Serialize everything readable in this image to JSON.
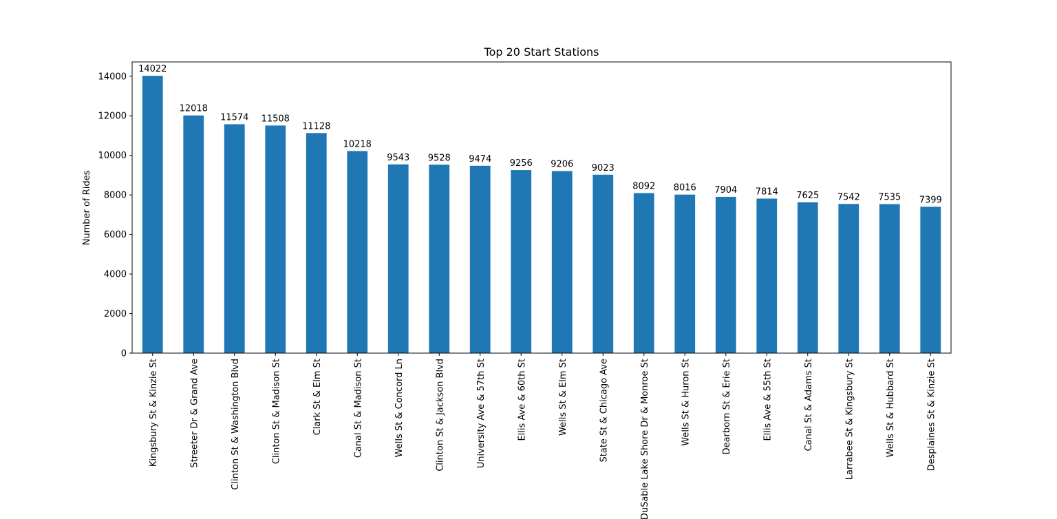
{
  "chart_data": {
    "type": "bar",
    "title": "Top 20 Start Stations",
    "xlabel": "",
    "ylabel": "Number of Rides",
    "categories": [
      "Kingsbury St & Kinzie St",
      "Streeter Dr & Grand Ave",
      "Clinton St & Washington Blvd",
      "Clinton St & Madison St",
      "Clark St & Elm St",
      "Canal St & Madison St",
      "Wells St & Concord Ln",
      "Clinton St & Jackson Blvd",
      "University Ave & 57th St",
      "Ellis Ave & 60th St",
      "Wells St & Elm St",
      "State St & Chicago Ave",
      "DuSable Lake Shore Dr & Monroe St",
      "Wells St & Huron St",
      "Dearborn St & Erie St",
      "Ellis Ave & 55th St",
      "Canal St & Adams St",
      "Larrabee St & Kingsbury St",
      "Wells St & Hubbard St",
      "Desplaines St & Kinzie St"
    ],
    "values": [
      14022,
      12018,
      11574,
      11508,
      11128,
      10218,
      9543,
      9528,
      9474,
      9256,
      9206,
      9023,
      8092,
      8016,
      7904,
      7814,
      7625,
      7542,
      7535,
      7399
    ],
    "data_labels": [
      "14022",
      "12018",
      "11574",
      "11508",
      "11128",
      "10218",
      "9543",
      "9528",
      "9474",
      "9256",
      "9206",
      "9023",
      "8092",
      "8016",
      "7904",
      "7814",
      "7625",
      "7542",
      "7535",
      "7399"
    ],
    "yticks": [
      0,
      2000,
      4000,
      6000,
      8000,
      10000,
      12000,
      14000
    ],
    "ytick_labels": [
      "0",
      "2000",
      "4000",
      "6000",
      "8000",
      "10000",
      "12000",
      "14000"
    ],
    "ylim": [
      0,
      14723
    ],
    "grid": false,
    "legend": "none",
    "bar_color": "#1f77b4"
  }
}
